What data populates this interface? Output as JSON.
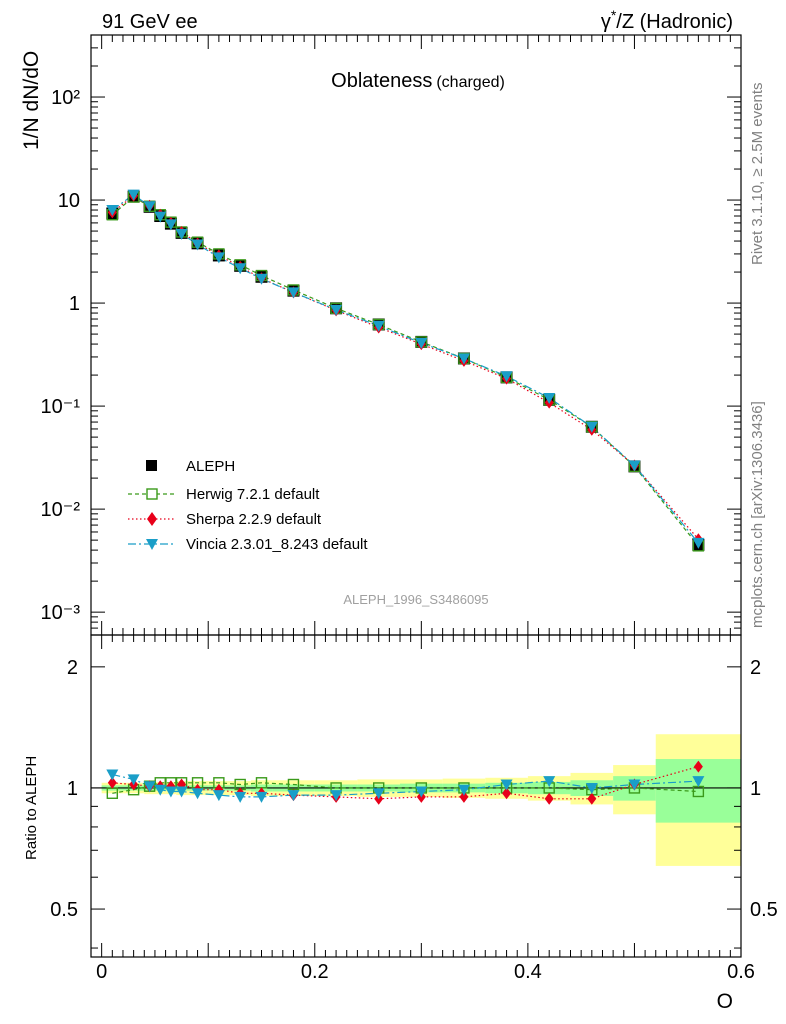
{
  "header": {
    "left": "91 GeV ee",
    "right_prefix": "γ",
    "right_sup": "*",
    "right_rest": "/Z (Hadronic)"
  },
  "side_labels": {
    "rivet": "Rivet 3.1.10, ≥ 2.5M events",
    "mcplots": "mcplots.cern.ch [arXiv:1306.3436]"
  },
  "analysis_id": "ALEPH_1996_S3486095",
  "colors": {
    "data": "#000000",
    "herwig": "#3a9a1a",
    "sherpa": "#e8001a",
    "vincia": "#1a9ec8",
    "band_outer": "#ffff99",
    "band_inner": "#99ff99"
  },
  "chart_data": [
    {
      "type": "line",
      "title": "Oblateness",
      "title_suffix": "(charged)",
      "ylabel": "1/N dN/dO",
      "yscale": "log",
      "ylim": [
        0.0006,
        400
      ],
      "xlim": [
        -0.01,
        0.6
      ],
      "ytick_labels": [
        "10⁻³",
        "10⁻²",
        "10⁻¹",
        "1",
        "10",
        "10²"
      ],
      "legend_location": "center-left",
      "x": [
        0.01,
        0.03,
        0.045,
        0.055,
        0.065,
        0.075,
        0.09,
        0.11,
        0.13,
        0.15,
        0.18,
        0.22,
        0.26,
        0.3,
        0.34,
        0.38,
        0.42,
        0.46,
        0.5,
        0.56
      ],
      "series": [
        {
          "key": "data",
          "name": "ALEPH",
          "values": [
            7.4,
            10.8,
            8.6,
            7.0,
            5.9,
            4.8,
            3.8,
            2.9,
            2.3,
            1.8,
            1.32,
            0.89,
            0.62,
            0.42,
            0.29,
            0.19,
            0.115,
            0.063,
            0.026,
            0.0045
          ]
        },
        {
          "key": "herwig",
          "name": "Herwig 7.2.1 default",
          "values": [
            7.2,
            10.7,
            8.7,
            7.2,
            6.1,
            4.9,
            3.9,
            3.0,
            2.35,
            1.85,
            1.34,
            0.89,
            0.62,
            0.42,
            0.29,
            0.19,
            0.115,
            0.063,
            0.026,
            0.0044
          ]
        },
        {
          "key": "sherpa",
          "name": "Sherpa 2.2.9 default",
          "values": [
            7.6,
            11.0,
            8.8,
            7.2,
            6.0,
            4.9,
            3.8,
            2.9,
            2.25,
            1.74,
            1.27,
            0.85,
            0.58,
            0.4,
            0.275,
            0.185,
            0.108,
            0.059,
            0.0265,
            0.0051
          ]
        },
        {
          "key": "vincia",
          "name": "Vincia 2.3.01_8.243 default",
          "values": [
            8.0,
            11.3,
            8.7,
            6.9,
            5.8,
            4.7,
            3.7,
            2.78,
            2.18,
            1.72,
            1.27,
            0.86,
            0.6,
            0.41,
            0.29,
            0.195,
            0.12,
            0.063,
            0.0265,
            0.0047
          ]
        }
      ]
    },
    {
      "type": "line",
      "ylabel": "Ratio to ALEPH",
      "xlabel": "O",
      "xlim": [
        -0.01,
        0.6
      ],
      "ylim": [
        0.38,
        2.4
      ],
      "yscale": "log",
      "xtick_labels": [
        "0",
        "0.2",
        "0.4",
        "0.6"
      ],
      "ytick_labels": [
        "0.5",
        "1",
        "2"
      ],
      "bands": {
        "edges": [
          0.0,
          0.02,
          0.04,
          0.05,
          0.06,
          0.07,
          0.08,
          0.1,
          0.12,
          0.14,
          0.16,
          0.2,
          0.24,
          0.28,
          0.32,
          0.36,
          0.4,
          0.44,
          0.48,
          0.52,
          0.6
        ],
        "outer": [
          0.03,
          0.03,
          0.035,
          0.035,
          0.035,
          0.04,
          0.04,
          0.04,
          0.04,
          0.045,
          0.045,
          0.045,
          0.05,
          0.05,
          0.055,
          0.06,
          0.07,
          0.09,
          0.14,
          0.36
        ],
        "inner": [
          0.015,
          0.015,
          0.015,
          0.015,
          0.015,
          0.015,
          0.015,
          0.015,
          0.015,
          0.02,
          0.02,
          0.02,
          0.02,
          0.025,
          0.025,
          0.03,
          0.035,
          0.045,
          0.07,
          0.18
        ]
      },
      "x": [
        0.01,
        0.03,
        0.045,
        0.055,
        0.065,
        0.075,
        0.09,
        0.11,
        0.13,
        0.15,
        0.18,
        0.22,
        0.26,
        0.3,
        0.34,
        0.38,
        0.42,
        0.46,
        0.5,
        0.56
      ],
      "series": [
        {
          "key": "herwig",
          "name": "Herwig 7.2.1 default",
          "values": [
            0.97,
            0.99,
            1.01,
            1.03,
            1.03,
            1.03,
            1.03,
            1.03,
            1.02,
            1.03,
            1.02,
            1.0,
            1.0,
            1.0,
            1.0,
            1.0,
            1.0,
            0.99,
            1.0,
            0.98
          ]
        },
        {
          "key": "sherpa",
          "name": "Sherpa 2.2.9 default",
          "values": [
            1.03,
            1.02,
            1.01,
            1.01,
            1.01,
            1.02,
            0.99,
            0.99,
            0.97,
            0.97,
            0.96,
            0.95,
            0.94,
            0.95,
            0.95,
            0.97,
            0.94,
            0.94,
            1.02,
            1.13
          ]
        },
        {
          "key": "vincia",
          "name": "Vincia 2.3.01_8.243 default",
          "values": [
            1.08,
            1.05,
            1.01,
            0.99,
            0.98,
            0.98,
            0.97,
            0.96,
            0.95,
            0.95,
            0.96,
            0.96,
            0.97,
            0.98,
            0.99,
            1.02,
            1.04,
            1.0,
            1.02,
            1.04
          ]
        }
      ]
    }
  ]
}
